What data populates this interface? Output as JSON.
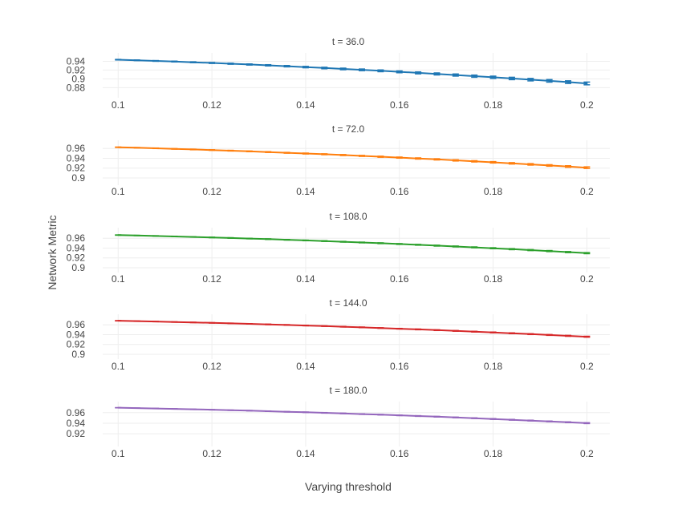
{
  "chart_data": {
    "type": "line",
    "xlabel": "Varying threshold",
    "ylabel": "Network Metric",
    "grid": true,
    "x": [
      0.1,
      0.104,
      0.108,
      0.112,
      0.116,
      0.12,
      0.124,
      0.128,
      0.132,
      0.136,
      0.14,
      0.144,
      0.148,
      0.152,
      0.156,
      0.16,
      0.164,
      0.168,
      0.172,
      0.176,
      0.18,
      0.184,
      0.188,
      0.192,
      0.196,
      0.2
    ],
    "xlim": [
      0.0967,
      0.2049
    ],
    "x_ticks": [
      "0.1",
      "0.12",
      "0.14",
      "0.16",
      "0.18",
      "0.2"
    ],
    "x_tick_values": [
      0.1,
      0.12,
      0.14,
      0.16,
      0.18,
      0.2
    ],
    "panels": [
      {
        "title": "t = 36.0",
        "color": "#1f77b4",
        "ylim": [
          0.8679,
          0.9481
        ],
        "y_ticks": [
          "0.94",
          "0.92",
          "0.9",
          "0.88"
        ],
        "y_tick_values": [
          0.94,
          0.92,
          0.9,
          0.88
        ],
        "values": [
          0.9436,
          0.9423,
          0.9408,
          0.9394,
          0.9378,
          0.9362,
          0.9345,
          0.9327,
          0.9308,
          0.9288,
          0.9268,
          0.9247,
          0.9226,
          0.9205,
          0.9183,
          0.916,
          0.9136,
          0.9112,
          0.9087,
          0.9061,
          0.9036,
          0.9009,
          0.8982,
          0.8955,
          0.8926,
          0.8896
        ],
        "errors": [
          0.0006,
          0.0007,
          0.0008,
          0.0009,
          0.001,
          0.0011,
          0.0012,
          0.0013,
          0.0014,
          0.0015,
          0.0016,
          0.0017,
          0.0018,
          0.0019,
          0.002,
          0.0021,
          0.0022,
          0.0023,
          0.0024,
          0.0025,
          0.0026,
          0.0027,
          0.0028,
          0.0029,
          0.003,
          0.0031
        ]
      },
      {
        "title": "t = 72.0",
        "color": "#ff7f0e",
        "ylim": [
          0.895,
          0.9669
        ],
        "y_ticks": [
          "0.96",
          "0.94",
          "0.92",
          "0.9"
        ],
        "y_tick_values": [
          0.96,
          0.94,
          0.92,
          0.9
        ],
        "values": [
          0.9625,
          0.9615,
          0.9604,
          0.9592,
          0.958,
          0.9568,
          0.9555,
          0.9541,
          0.9527,
          0.9512,
          0.9497,
          0.9482,
          0.9466,
          0.9449,
          0.9432,
          0.9414,
          0.9396,
          0.9378,
          0.9358,
          0.9338,
          0.9318,
          0.9297,
          0.9276,
          0.9254,
          0.9232,
          0.9209
        ],
        "errors": [
          0.0004,
          0.0004,
          0.0005,
          0.0005,
          0.0006,
          0.0006,
          0.0007,
          0.0007,
          0.0008,
          0.0008,
          0.0009,
          0.0009,
          0.001,
          0.001,
          0.0011,
          0.0011,
          0.0012,
          0.0012,
          0.0013,
          0.0013,
          0.0014,
          0.0014,
          0.0015,
          0.0015,
          0.0016,
          0.0016
        ]
      },
      {
        "title": "t = 108.0",
        "color": "#2ca02c",
        "ylim": [
          0.9,
          0.9718
        ],
        "y_ticks": [
          "0.96",
          "0.94",
          "0.92",
          "0.9"
        ],
        "y_tick_values": [
          0.96,
          0.94,
          0.92,
          0.9
        ],
        "values": [
          0.9665,
          0.9656,
          0.9647,
          0.9637,
          0.9627,
          0.9617,
          0.9606,
          0.9594,
          0.9582,
          0.9569,
          0.9556,
          0.9543,
          0.9529,
          0.9514,
          0.9499,
          0.9483,
          0.9467,
          0.945,
          0.9433,
          0.9415,
          0.9397,
          0.9378,
          0.9359,
          0.9339,
          0.9318,
          0.9297
        ],
        "errors": [
          0.0003,
          0.0003,
          0.0004,
          0.0004,
          0.0004,
          0.0005,
          0.0005,
          0.0005,
          0.0006,
          0.0006,
          0.0006,
          0.0007,
          0.0007,
          0.0007,
          0.0008,
          0.0008,
          0.0008,
          0.0009,
          0.0009,
          0.0009,
          0.001,
          0.001,
          0.001,
          0.0011,
          0.0011,
          0.0011
        ]
      },
      {
        "title": "t = 144.0",
        "color": "#d62728",
        "ylim": [
          0.9,
          0.9718
        ],
        "y_ticks": [
          "0.96",
          "0.94",
          "0.92",
          "0.9"
        ],
        "y_tick_values": [
          0.96,
          0.94,
          0.92,
          0.9
        ],
        "values": [
          0.9683,
          0.9675,
          0.9667,
          0.9658,
          0.9649,
          0.964,
          0.963,
          0.962,
          0.9609,
          0.9598,
          0.9586,
          0.9574,
          0.9562,
          0.9549,
          0.9535,
          0.9521,
          0.9507,
          0.9492,
          0.9477,
          0.9461,
          0.9445,
          0.9428,
          0.9411,
          0.9394,
          0.9376,
          0.9358
        ],
        "errors": [
          0.0003,
          0.0003,
          0.0003,
          0.0003,
          0.0004,
          0.0004,
          0.0004,
          0.0004,
          0.0005,
          0.0005,
          0.0005,
          0.0005,
          0.0006,
          0.0006,
          0.0006,
          0.0006,
          0.0007,
          0.0007,
          0.0007,
          0.0007,
          0.0008,
          0.0008,
          0.0008,
          0.0008,
          0.0009,
          0.0009
        ]
      },
      {
        "title": "t = 180.0",
        "color": "#9467bd",
        "ylim": [
          0.905,
          0.9718
        ],
        "y_ticks": [
          "0.96",
          "0.94",
          "0.92"
        ],
        "y_tick_values": [
          0.96,
          0.94,
          0.92
        ],
        "values": [
          0.9693,
          0.9686,
          0.9679,
          0.9671,
          0.9663,
          0.9655,
          0.9646,
          0.9637,
          0.9627,
          0.9617,
          0.9607,
          0.9596,
          0.9585,
          0.9573,
          0.9561,
          0.9549,
          0.9536,
          0.9523,
          0.9509,
          0.9495,
          0.948,
          0.9465,
          0.945,
          0.9434,
          0.9418,
          0.9401
        ],
        "errors": [
          0.0002,
          0.0002,
          0.0003,
          0.0003,
          0.0003,
          0.0003,
          0.0003,
          0.0004,
          0.0004,
          0.0004,
          0.0004,
          0.0005,
          0.0005,
          0.0005,
          0.0005,
          0.0005,
          0.0006,
          0.0006,
          0.0006,
          0.0006,
          0.0007,
          0.0007,
          0.0007,
          0.0007,
          0.0007,
          0.0008
        ]
      }
    ]
  }
}
